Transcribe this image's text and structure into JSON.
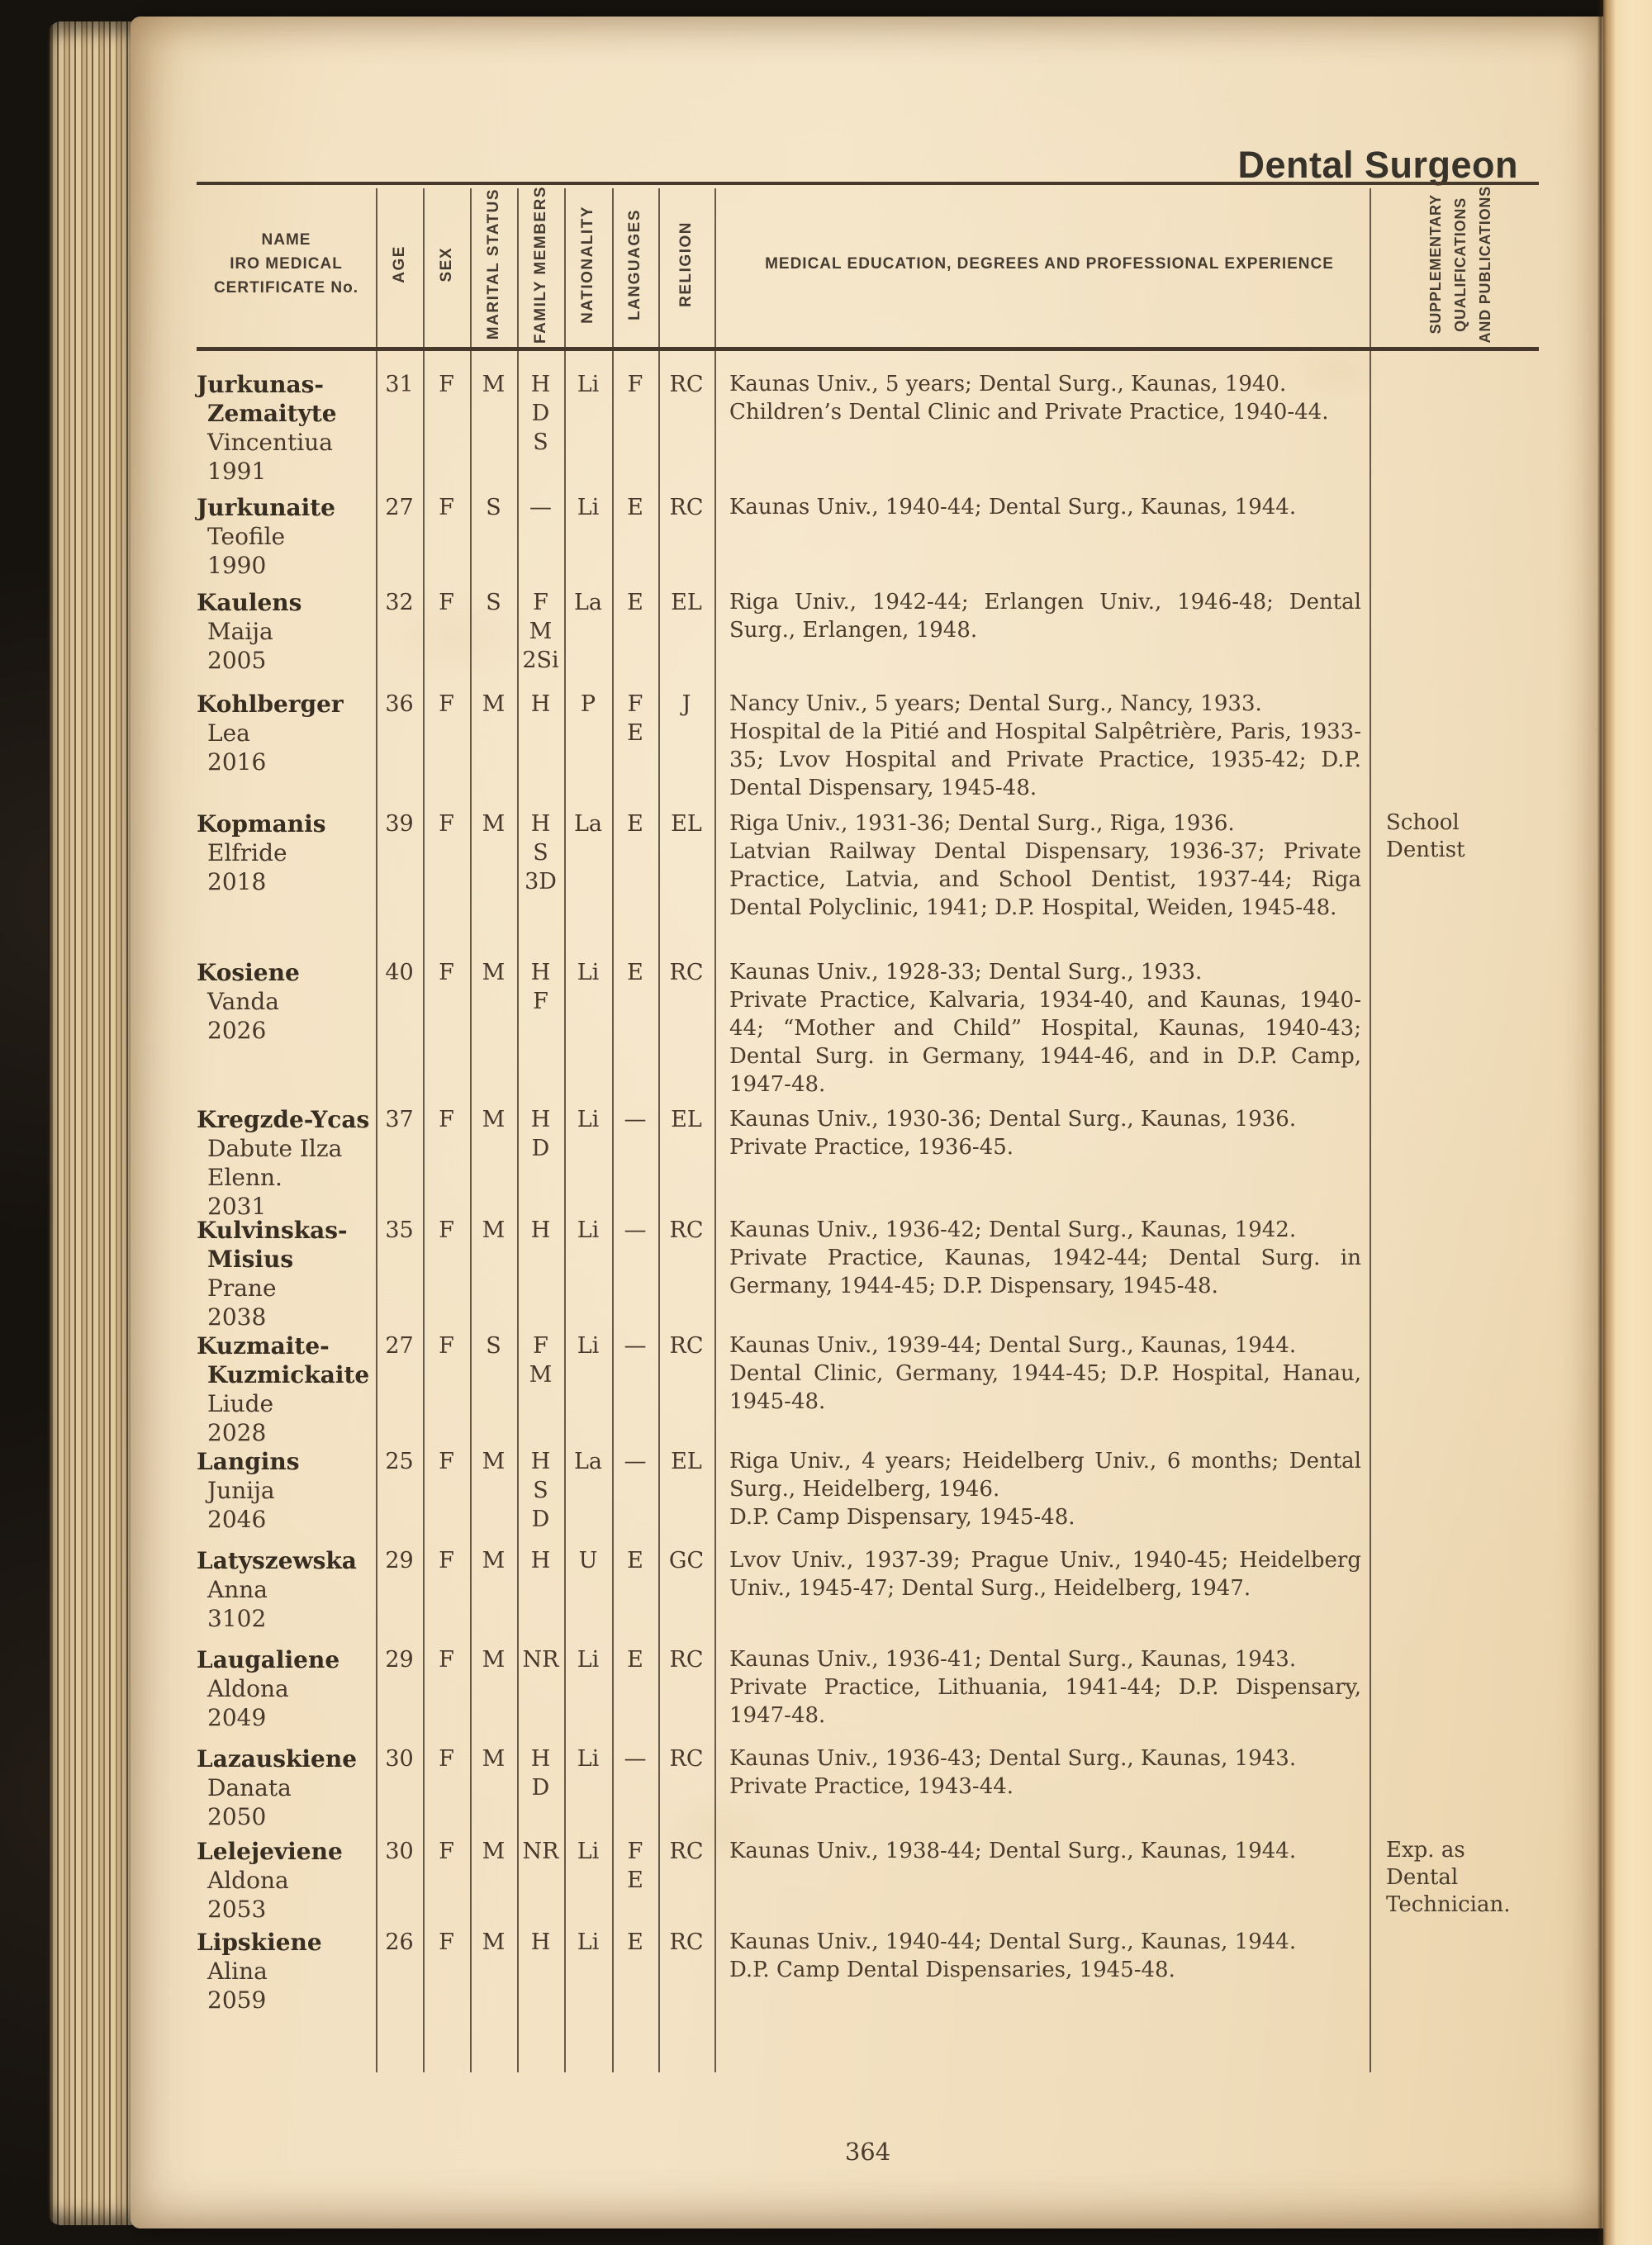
{
  "page": {
    "title": "Dental Surgeon",
    "page_number": "364"
  },
  "colors": {
    "paper": "#f2e0c0",
    "ink": "#46392b",
    "ink_bold": "#372d21",
    "rule": "#46392c",
    "background": "#16120e",
    "next_page": "#f6e2bc"
  },
  "table": {
    "headers": {
      "name_lines": [
        "NAME",
        "IRO MEDICAL",
        "CERTIFICATE No."
      ],
      "rotated": [
        "AGE",
        "SEX",
        "MARITAL STATUS",
        "FAMILY MEMBERS",
        "NATIONALITY",
        "LANGUAGES",
        "RELIGION"
      ],
      "education": "MEDICAL EDUCATION, DEGREES AND PROFESSIONAL EXPERIENCE",
      "supplementary_lines": [
        "SUPPLEMENTARY",
        "QUALIFICATIONS",
        "AND PUBLICATIONS"
      ]
    },
    "rows": [
      {
        "surname_lines": [
          "Jurkunas-",
          "Zemaityte"
        ],
        "given_lines": [
          "Vincentiua"
        ],
        "certificate_no": "1991",
        "age": "31",
        "sex": "F",
        "marital_status": "M",
        "family_members": [
          "H",
          "D",
          "S"
        ],
        "nationality": "Li",
        "languages": [
          "F"
        ],
        "religion": "RC",
        "education": [
          "Kaunas Univ., 5 years; Dental Surg., Kaunas, 1940.",
          "Children’s Dental Clinic and Private Practice, 1940-44."
        ],
        "supplementary_lines": []
      },
      {
        "surname_lines": [
          "Jurkunaite"
        ],
        "given_lines": [
          "Teofile"
        ],
        "certificate_no": "1990",
        "age": "27",
        "sex": "F",
        "marital_status": "S",
        "family_members": [
          "—"
        ],
        "nationality": "Li",
        "languages": [
          "E"
        ],
        "religion": "RC",
        "education": [
          "Kaunas Univ., 1940-44; Dental Surg., Kaunas, 1944."
        ],
        "supplementary_lines": []
      },
      {
        "surname_lines": [
          "Kaulens"
        ],
        "given_lines": [
          "Maija"
        ],
        "certificate_no": "2005",
        "age": "32",
        "sex": "F",
        "marital_status": "S",
        "family_members": [
          "F",
          "M",
          "2Si"
        ],
        "nationality": "La",
        "languages": [
          "E"
        ],
        "religion": "EL",
        "education": [
          "Riga Univ., 1942-44; Erlangen Univ., 1946-48; Dental Surg., Erlangen, 1948."
        ],
        "supplementary_lines": []
      },
      {
        "surname_lines": [
          "Kohlberger"
        ],
        "given_lines": [
          "Lea"
        ],
        "certificate_no": "2016",
        "age": "36",
        "sex": "F",
        "marital_status": "M",
        "family_members": [
          "H"
        ],
        "nationality": "P",
        "languages": [
          "F",
          "E"
        ],
        "religion": "J",
        "education": [
          "Nancy Univ., 5 years; Dental Surg., Nancy, 1933.",
          "Hospital de la Pitié and Hospital Salpêtrière, Paris, 1933-35; Lvov Hospital and Private Practice, 1935-42; D.P. Dental Dispensary, 1945-48."
        ],
        "supplementary_lines": []
      },
      {
        "surname_lines": [
          "Kopmanis"
        ],
        "given_lines": [
          "Elfride"
        ],
        "certificate_no": "2018",
        "age": "39",
        "sex": "F",
        "marital_status": "M",
        "family_members": [
          "H",
          "S",
          "3D"
        ],
        "nationality": "La",
        "languages": [
          "E"
        ],
        "religion": "EL",
        "education": [
          "Riga Univ., 1931-36; Dental Surg., Riga, 1936.",
          "Latvian Railway Dental Dispensary, 1936-37; Private Practice, Latvia, and School Dentist, 1937-44; Riga Dental Polyclinic, 1941; D.P. Hospital, Weiden, 1945-48."
        ],
        "supplementary_lines": [
          "School",
          "Dentist"
        ]
      },
      {
        "surname_lines": [
          "Kosiene"
        ],
        "given_lines": [
          "Vanda"
        ],
        "certificate_no": "2026",
        "age": "40",
        "sex": "F",
        "marital_status": "M",
        "family_members": [
          "H",
          "F"
        ],
        "nationality": "Li",
        "languages": [
          "E"
        ],
        "religion": "RC",
        "education": [
          "Kaunas Univ., 1928-33; Dental Surg., 1933.",
          "Private Practice, Kalvaria, 1934-40, and Kaunas, 1940-44; “Mother and Child” Hospital, Kaunas, 1940-43; Dental Surg. in Germany, 1944-46, and in D.P. Camp, 1947-48."
        ],
        "supplementary_lines": []
      },
      {
        "surname_lines": [
          "Kregzde-Ycas"
        ],
        "given_lines": [
          "Dabute Ilza",
          "Elenn."
        ],
        "certificate_no": "2031",
        "age": "37",
        "sex": "F",
        "marital_status": "M",
        "family_members": [
          "H",
          "D"
        ],
        "nationality": "Li",
        "languages": [
          "—"
        ],
        "religion": "EL",
        "education": [
          "Kaunas Univ., 1930-36; Dental Surg., Kaunas, 1936.",
          "Private Practice, 1936-45."
        ],
        "supplementary_lines": []
      },
      {
        "surname_lines": [
          "Kulvinskas-",
          "Misius"
        ],
        "given_lines": [
          "Prane"
        ],
        "certificate_no": "2038",
        "age": "35",
        "sex": "F",
        "marital_status": "M",
        "family_members": [
          "H"
        ],
        "nationality": "Li",
        "languages": [
          "—"
        ],
        "religion": "RC",
        "education": [
          "Kaunas Univ., 1936-42; Dental Surg., Kaunas, 1942.",
          "Private Practice, Kaunas, 1942-44; Dental Surg. in Germany, 1944-45; D.P. Dispensary, 1945-48."
        ],
        "supplementary_lines": []
      },
      {
        "surname_lines": [
          "Kuzmaite-",
          "Kuzmickaite"
        ],
        "given_lines": [
          "Liude"
        ],
        "certificate_no": "2028",
        "age": "27",
        "sex": "F",
        "marital_status": "S",
        "family_members": [
          "F",
          "M"
        ],
        "nationality": "Li",
        "languages": [
          "—"
        ],
        "religion": "RC",
        "education": [
          "Kaunas Univ., 1939-44; Dental Surg., Kaunas, 1944.",
          "Dental Clinic, Germany, 1944-45; D.P. Hospital, Hanau, 1945-48."
        ],
        "supplementary_lines": []
      },
      {
        "surname_lines": [
          "Langins"
        ],
        "given_lines": [
          "Junija"
        ],
        "certificate_no": "2046",
        "age": "25",
        "sex": "F",
        "marital_status": "M",
        "family_members": [
          "H",
          "S",
          "D"
        ],
        "nationality": "La",
        "languages": [
          "—"
        ],
        "religion": "EL",
        "education": [
          "Riga Univ., 4 years; Heidelberg Univ., 6 months; Dental Surg., Heidelberg, 1946.",
          "D.P. Camp Dispensary, 1945-48."
        ],
        "supplementary_lines": []
      },
      {
        "surname_lines": [
          "Latyszewska"
        ],
        "given_lines": [
          "Anna"
        ],
        "certificate_no": "3102",
        "age": "29",
        "sex": "F",
        "marital_status": "M",
        "family_members": [
          "H"
        ],
        "nationality": "U",
        "languages": [
          "E"
        ],
        "religion": "GC",
        "education": [
          "Lvov Univ., 1937-39; Prague Univ., 1940-45; Heidelberg Univ., 1945-47; Dental Surg., Heidelberg, 1947."
        ],
        "supplementary_lines": []
      },
      {
        "surname_lines": [
          "Laugaliene"
        ],
        "given_lines": [
          "Aldona"
        ],
        "certificate_no": "2049",
        "age": "29",
        "sex": "F",
        "marital_status": "M",
        "family_members": [
          "NR"
        ],
        "nationality": "Li",
        "languages": [
          "E"
        ],
        "religion": "RC",
        "education": [
          "Kaunas Univ., 1936-41; Dental Surg., Kaunas, 1943.",
          "Private Practice, Lithuania, 1941-44; D.P. Dispensary, 1947-48."
        ],
        "supplementary_lines": []
      },
      {
        "surname_lines": [
          "Lazauskiene"
        ],
        "given_lines": [
          "Danata"
        ],
        "certificate_no": "2050",
        "age": "30",
        "sex": "F",
        "marital_status": "M",
        "family_members": [
          "H",
          "D"
        ],
        "nationality": "Li",
        "languages": [
          "—"
        ],
        "religion": "RC",
        "education": [
          "Kaunas Univ., 1936-43; Dental Surg., Kaunas, 1943.",
          "Private Practice, 1943-44."
        ],
        "supplementary_lines": []
      },
      {
        "surname_lines": [
          "Lelejeviene"
        ],
        "given_lines": [
          "Aldona"
        ],
        "certificate_no": "2053",
        "age": "30",
        "sex": "F",
        "marital_status": "M",
        "family_members": [
          "NR"
        ],
        "nationality": "Li",
        "languages": [
          "F",
          "E"
        ],
        "religion": "RC",
        "education": [
          "Kaunas Univ., 1938-44; Dental Surg., Kaunas, 1944."
        ],
        "supplementary_lines": [
          "Exp. as Dental",
          "Technician."
        ]
      },
      {
        "surname_lines": [
          "Lipskiene"
        ],
        "given_lines": [
          "Alina"
        ],
        "certificate_no": "2059",
        "age": "26",
        "sex": "F",
        "marital_status": "M",
        "family_members": [
          "H"
        ],
        "nationality": "Li",
        "languages": [
          "E"
        ],
        "religion": "RC",
        "education": [
          "Kaunas Univ., 1940-44; Dental Surg., Kaunas, 1944.",
          "D.P. Camp Dental Dispensaries, 1945-48."
        ],
        "supplementary_lines": []
      }
    ]
  }
}
